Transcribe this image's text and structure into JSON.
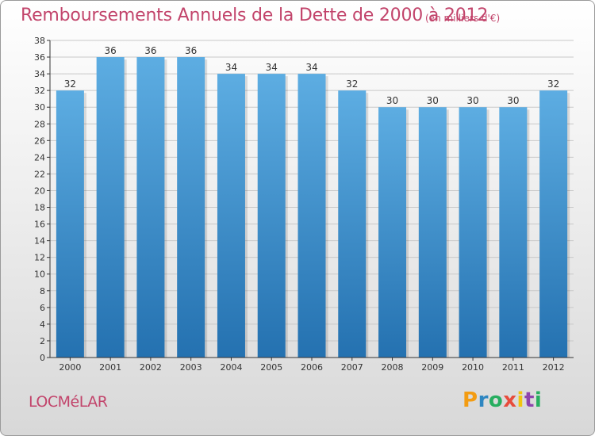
{
  "title": "Remboursements Annuels de la Dette de 2000 à 2012",
  "subtitle": "(en milliers d'€)",
  "commune": "LOCMéLAR",
  "logo": {
    "text": "Proxiti",
    "letter_colors": [
      "#f39c12",
      "#2e86c1",
      "#27ae60",
      "#e74c3c",
      "#f1c40f",
      "#8e44ad",
      "#27ae60"
    ]
  },
  "colors": {
    "bar_top": "#5dade2",
    "bar_bottom": "#2471b0",
    "title": "#c2446b",
    "grid": "#c8c8c8",
    "axis": "#333333"
  },
  "chart_data": {
    "type": "bar",
    "categories": [
      "2000",
      "2001",
      "2002",
      "2003",
      "2004",
      "2005",
      "2006",
      "2007",
      "2008",
      "2009",
      "2010",
      "2011",
      "2012"
    ],
    "values": [
      32,
      36,
      36,
      36,
      34,
      34,
      34,
      32,
      30,
      30,
      30,
      30,
      32
    ],
    "data_labels": [
      "32",
      "36",
      "36",
      "36",
      "34",
      "34",
      "34",
      "32",
      "30",
      "30",
      "30",
      "30",
      "32"
    ],
    "yticks": [
      "0",
      "2",
      "4",
      "6",
      "8",
      "10",
      "12",
      "14",
      "16",
      "18",
      "20",
      "22",
      "24",
      "26",
      "28",
      "30",
      "32",
      "34",
      "36",
      "38"
    ],
    "ylim": [
      0,
      38
    ],
    "ystep": 2,
    "xlabel": "",
    "ylabel": "",
    "grid": "horizontal"
  }
}
